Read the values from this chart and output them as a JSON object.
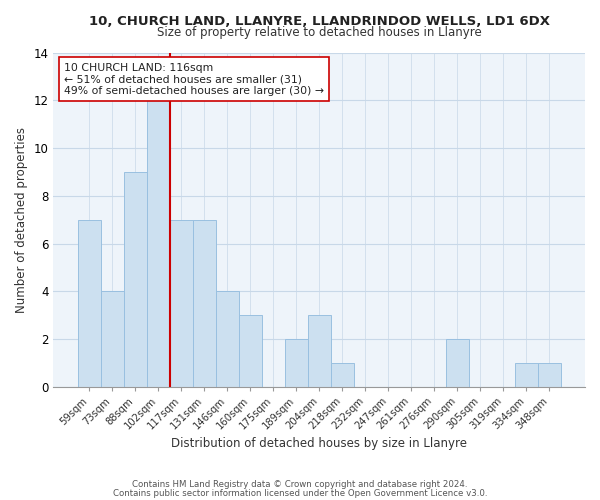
{
  "title": "10, CHURCH LAND, LLANYRE, LLANDRINDOD WELLS, LD1 6DX",
  "subtitle": "Size of property relative to detached houses in Llanyre",
  "xlabel": "Distribution of detached houses by size in Llanyre",
  "ylabel": "Number of detached properties",
  "bar_labels": [
    "59sqm",
    "73sqm",
    "88sqm",
    "102sqm",
    "117sqm",
    "131sqm",
    "146sqm",
    "160sqm",
    "175sqm",
    "189sqm",
    "204sqm",
    "218sqm",
    "232sqm",
    "247sqm",
    "261sqm",
    "276sqm",
    "290sqm",
    "305sqm",
    "319sqm",
    "334sqm",
    "348sqm"
  ],
  "bar_heights": [
    7,
    4,
    9,
    12,
    7,
    7,
    4,
    3,
    0,
    2,
    3,
    1,
    0,
    0,
    0,
    0,
    2,
    0,
    0,
    1,
    1
  ],
  "bar_color": "#cce0f0",
  "bar_edgecolor": "#99c0e0",
  "red_line_x": 3.5,
  "marker_color": "#cc0000",
  "annotation_title": "10 CHURCH LAND: 116sqm",
  "annotation_line1": "← 51% of detached houses are smaller (31)",
  "annotation_line2": "49% of semi-detached houses are larger (30) →",
  "ylim": [
    0,
    14
  ],
  "yticks": [
    0,
    2,
    4,
    6,
    8,
    10,
    12,
    14
  ],
  "footnote1": "Contains HM Land Registry data © Crown copyright and database right 2024.",
  "footnote2": "Contains public sector information licensed under the Open Government Licence v3.0.",
  "bg_color": "#eef4fa"
}
